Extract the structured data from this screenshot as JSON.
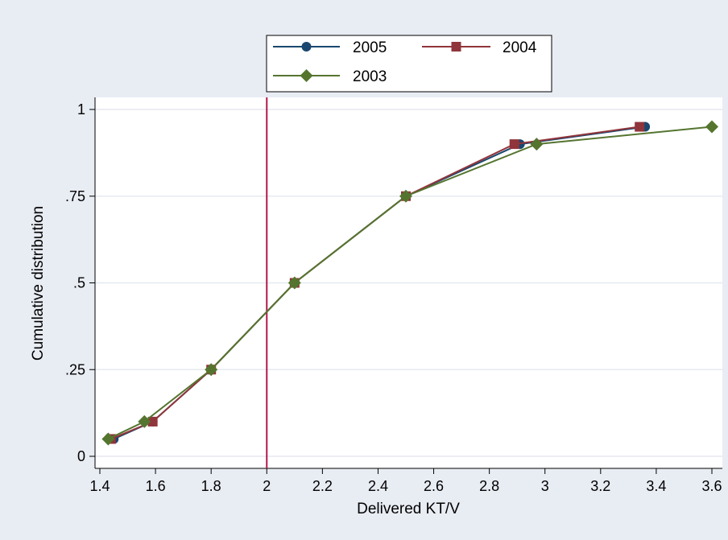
{
  "chart_data": {
    "type": "line",
    "xlabel": "Delivered KT/V",
    "ylabel": "Cumulative distribution",
    "xlim": [
      1.4,
      3.6
    ],
    "ylim": [
      0,
      1
    ],
    "x_ticks": [
      1.4,
      1.6,
      1.8,
      2,
      2.2,
      2.4,
      2.6,
      2.8,
      3,
      3.2,
      3.4,
      3.6
    ],
    "x_tick_labels": [
      "1.4",
      "1.6",
      "1.8",
      "2",
      "2.2",
      "2.4",
      "2.6",
      "2.8",
      "3",
      "3.2",
      "3.4",
      "3.6"
    ],
    "y_ticks": [
      0,
      0.25,
      0.5,
      0.75,
      1
    ],
    "y_tick_labels": [
      "0",
      ".25",
      ".5",
      ".75",
      "1"
    ],
    "grid": "horizontal",
    "legend_position": "top",
    "reference_line": {
      "x": 2,
      "color": "#b2164a"
    },
    "series": [
      {
        "name": "2005",
        "color": "#1a476f",
        "marker": "circle",
        "points": [
          [
            1.45,
            0.05
          ],
          [
            1.59,
            0.1
          ],
          [
            1.8,
            0.25
          ],
          [
            2.1,
            0.5
          ],
          [
            2.5,
            0.75
          ],
          [
            2.91,
            0.9
          ],
          [
            3.36,
            0.95
          ]
        ]
      },
      {
        "name": "2004",
        "color": "#90353b",
        "marker": "square",
        "points": [
          [
            1.44,
            0.05
          ],
          [
            1.59,
            0.1
          ],
          [
            1.8,
            0.25
          ],
          [
            2.1,
            0.5
          ],
          [
            2.5,
            0.75
          ],
          [
            2.89,
            0.9
          ],
          [
            3.34,
            0.95
          ]
        ]
      },
      {
        "name": "2003",
        "color": "#55752f",
        "marker": "diamond",
        "points": [
          [
            1.43,
            0.05
          ],
          [
            1.56,
            0.1
          ],
          [
            1.8,
            0.25
          ],
          [
            2.1,
            0.5
          ],
          [
            2.5,
            0.75
          ],
          [
            2.97,
            0.9
          ],
          [
            3.6,
            0.95
          ]
        ]
      }
    ]
  }
}
